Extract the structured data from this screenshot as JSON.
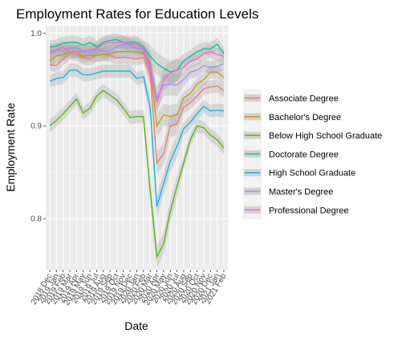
{
  "chart_data": {
    "type": "line",
    "title": "Employment Rates for Education Levels",
    "xlabel": "Date",
    "ylabel": "Employment Rate",
    "ylim": [
      0.745,
      1.008
    ],
    "y_ticks": [
      0.8,
      0.9,
      1.0
    ],
    "y_tick_labels": [
      "0.8",
      "0.9",
      "1.0"
    ],
    "x": [
      "2018 Dec",
      "2019 Jan",
      "2019 Feb",
      "2019 Mar",
      "2019 Apr",
      "2019 May",
      "2019 Jun",
      "2019 Jul",
      "2019 Aug",
      "2019 Sep",
      "2019 Oct",
      "2019 Nov",
      "2019 Dec",
      "2020 Jan",
      "2020 Feb",
      "2020 Mar",
      "2020 Apr",
      "2020 May",
      "2020 Jun",
      "2020 Jul",
      "2020 Aug",
      "2020 Sep",
      "2020 Oct",
      "2020 Nov",
      "2020 Dec",
      "2021 Jan",
      "2021 Feb"
    ],
    "x_tick_labels": [
      "2018 Dec",
      "2019 Jan",
      "2019 Feb",
      "2019 Mar",
      "2019 Apr",
      "2019 May",
      "2019 Jun",
      "2019 Jul",
      "2019 Aug",
      "2019 Sep",
      "2019 Oct",
      "2019 Nov",
      "2019 Dec",
      "2020 Jan",
      "2020 Feb",
      "2020 Mar",
      "2020 Apr",
      "2020 May",
      "2020 Jun",
      "2020 Jul",
      "2020 Aug",
      "2020 Sep",
      "2020 Oct",
      "2020 Nov",
      "2020 Dec",
      "2021 Jan",
      "2021 Feb"
    ],
    "grid": true,
    "confidence_band": true,
    "legend_position": "right",
    "series": [
      {
        "name": "Associate Degree",
        "color": "#F8766D",
        "values": [
          0.966,
          0.965,
          0.972,
          0.978,
          0.977,
          0.973,
          0.972,
          0.976,
          0.977,
          0.976,
          0.973,
          0.974,
          0.973,
          0.972,
          0.974,
          0.955,
          0.86,
          0.87,
          0.9,
          0.902,
          0.92,
          0.925,
          0.932,
          0.94,
          0.942,
          0.943,
          0.938
        ]
      },
      {
        "name": "Bachelor's Degree",
        "color": "#C49A00",
        "values": [
          0.97,
          0.975,
          0.977,
          0.98,
          0.98,
          0.975,
          0.976,
          0.976,
          0.977,
          0.978,
          0.98,
          0.98,
          0.98,
          0.98,
          0.978,
          0.965,
          0.9,
          0.912,
          0.91,
          0.912,
          0.93,
          0.935,
          0.945,
          0.95,
          0.958,
          0.958,
          0.952
        ]
      },
      {
        "name": "Below High School Graduate",
        "color": "#53B400",
        "values": [
          0.9,
          0.906,
          0.913,
          0.921,
          0.929,
          0.914,
          0.919,
          0.932,
          0.938,
          0.933,
          0.928,
          0.919,
          0.909,
          0.91,
          0.91,
          0.83,
          0.759,
          0.773,
          0.808,
          0.835,
          0.86,
          0.885,
          0.9,
          0.898,
          0.89,
          0.885,
          0.876
        ]
      },
      {
        "name": "Doctorate Degree",
        "color": "#00C094",
        "values": [
          0.985,
          0.986,
          0.989,
          0.99,
          0.99,
          0.987,
          0.99,
          0.985,
          0.99,
          0.992,
          0.993,
          0.99,
          0.99,
          0.99,
          0.985,
          0.975,
          0.967,
          0.962,
          0.958,
          0.96,
          0.97,
          0.975,
          0.98,
          0.983,
          0.983,
          0.988,
          0.978
        ]
      },
      {
        "name": "High School Graduate",
        "color": "#00B6EB",
        "values": [
          0.948,
          0.951,
          0.952,
          0.96,
          0.96,
          0.955,
          0.955,
          0.957,
          0.959,
          0.959,
          0.959,
          0.959,
          0.959,
          0.951,
          0.953,
          0.92,
          0.813,
          0.838,
          0.862,
          0.878,
          0.897,
          0.904,
          0.913,
          0.921,
          0.916,
          0.917,
          0.916
        ]
      },
      {
        "name": "Master's Degree",
        "color": "#A58AFF",
        "values": [
          0.978,
          0.982,
          0.98,
          0.984,
          0.984,
          0.98,
          0.979,
          0.983,
          0.98,
          0.981,
          0.985,
          0.988,
          0.987,
          0.983,
          0.984,
          0.968,
          0.93,
          0.944,
          0.945,
          0.944,
          0.95,
          0.958,
          0.96,
          0.965,
          0.963,
          0.964,
          0.967
        ]
      },
      {
        "name": "Professional Degree",
        "color": "#FB61D7",
        "values": [
          0.98,
          0.982,
          0.985,
          0.98,
          0.98,
          0.98,
          0.982,
          0.983,
          0.988,
          0.99,
          0.99,
          0.99,
          0.988,
          0.988,
          0.982,
          0.96,
          0.925,
          0.95,
          0.957,
          0.96,
          0.963,
          0.97,
          0.972,
          0.978,
          0.98,
          0.977,
          0.975
        ]
      }
    ]
  }
}
